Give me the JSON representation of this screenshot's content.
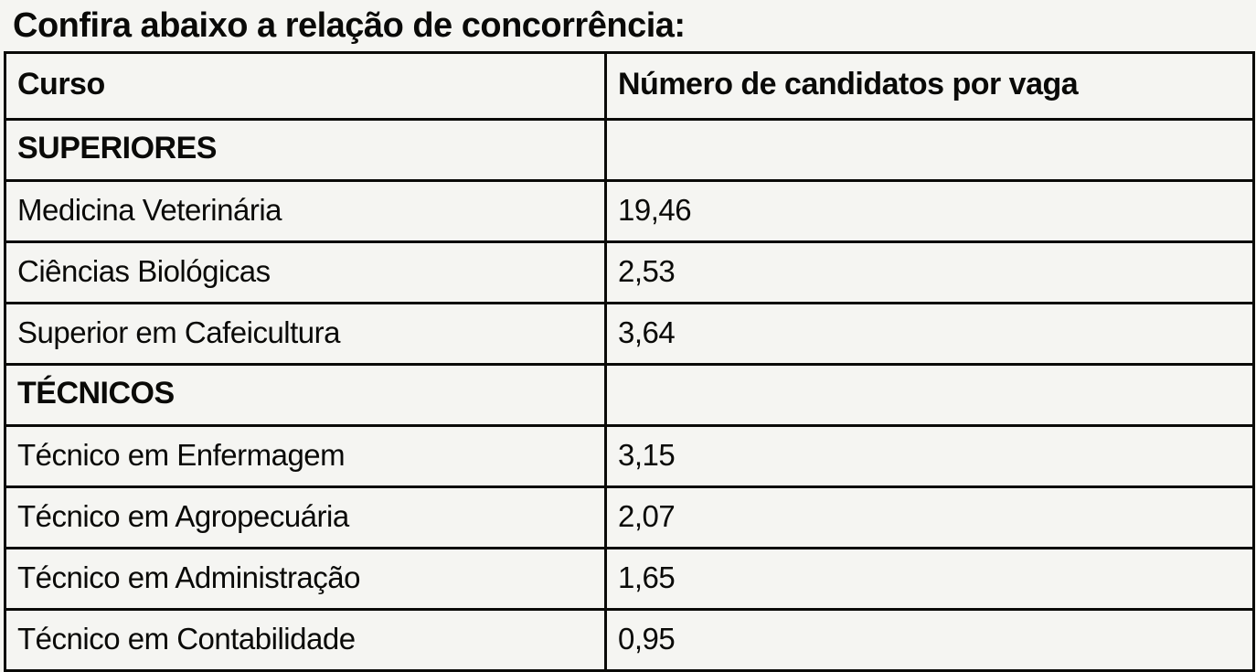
{
  "title": "Confira abaixo a relação de concorrência:",
  "colors": {
    "background": "#f5f5f2",
    "border": "#0a0a08",
    "text": "#0a0a08"
  },
  "table": {
    "headers": {
      "curso": "Curso",
      "valor": "Número de candidatos por vaga"
    },
    "rows": [
      {
        "curso": "SUPERIORES",
        "valor": "",
        "section": true
      },
      {
        "curso": "Medicina Veterinária",
        "valor": "19,46"
      },
      {
        "curso": "Ciências Biológicas",
        "valor": "2,53"
      },
      {
        "curso": "Superior em Cafeicultura",
        "valor": "3,64"
      },
      {
        "curso": "TÉCNICOS",
        "valor": "",
        "section": true
      },
      {
        "curso": "Técnico em Enfermagem",
        "valor": "3,15"
      },
      {
        "curso": "Técnico em Agropecuária",
        "valor": "2,07"
      },
      {
        "curso": "Técnico em Administração",
        "valor": "1,65"
      },
      {
        "curso": "Técnico em Contabilidade",
        "valor": "0,95"
      }
    ]
  }
}
